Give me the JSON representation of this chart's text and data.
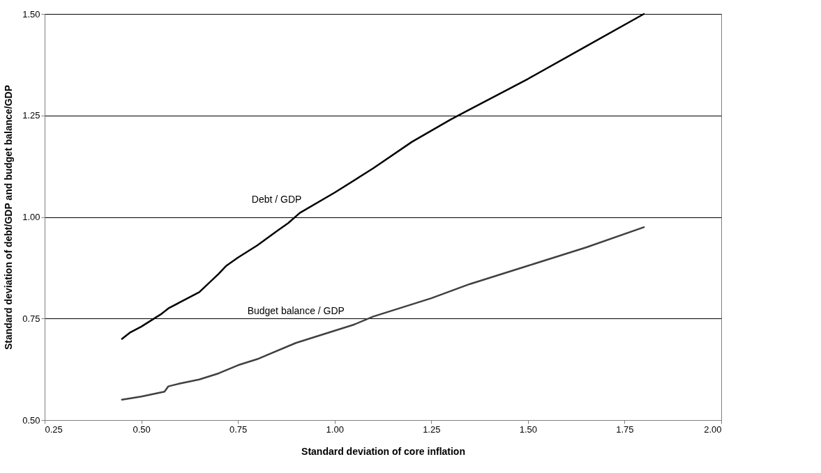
{
  "chart_data": {
    "type": "line",
    "xlabel": "Standard deviation of core inflation",
    "ylabel": "Standard deviation of debt/GDP and budget balance/GDP",
    "xlim": [
      0.25,
      2.0
    ],
    "xticks": [
      0.25,
      {
        "value": 0.5,
        "label": "0.50"
      },
      0.75,
      {
        "value": 1,
        "label": "1.00"
      },
      1.25,
      {
        "value": 1.5,
        "label": "1.50"
      },
      1.75,
      {
        "value": 2,
        "label": "2.00"
      }
    ],
    "ylim": [
      0.5,
      1.5
    ],
    "yticks": [
      {
        "value": 0.5,
        "label": "0.50"
      },
      0.75,
      {
        "value": 1,
        "label": "1.00"
      },
      1.25,
      {
        "value": 1.5,
        "label": "1.50"
      }
    ],
    "grid": "y",
    "series": [
      {
        "name": "Debt / GDP",
        "color": "#000000",
        "x": [
          0.45,
          0.47,
          0.5,
          0.55,
          0.57,
          0.6,
          0.65,
          0.7,
          0.72,
          0.75,
          0.8,
          0.85,
          0.88,
          0.91,
          1.0,
          1.1,
          1.2,
          1.3,
          1.34,
          1.5,
          1.65,
          1.8
        ],
        "values": [
          0.7,
          0.715,
          0.73,
          0.76,
          0.775,
          0.79,
          0.815,
          0.86,
          0.88,
          0.9,
          0.93,
          0.965,
          0.985,
          1.01,
          1.06,
          1.12,
          1.185,
          1.24,
          1.26,
          1.34,
          1.42,
          1.5
        ]
      },
      {
        "name": "Budget balance / GDP",
        "color": "#404040",
        "x": [
          0.45,
          0.5,
          0.56,
          0.57,
          0.6,
          0.65,
          0.7,
          0.75,
          0.8,
          0.9,
          1.0,
          1.05,
          1.1,
          1.15,
          1.25,
          1.35,
          1.5,
          1.65,
          1.8
        ],
        "values": [
          0.55,
          0.558,
          0.57,
          0.583,
          0.59,
          0.6,
          0.615,
          0.635,
          0.65,
          0.69,
          0.72,
          0.735,
          0.755,
          0.77,
          0.8,
          0.835,
          0.88,
          0.925,
          0.975
        ]
      }
    ]
  }
}
